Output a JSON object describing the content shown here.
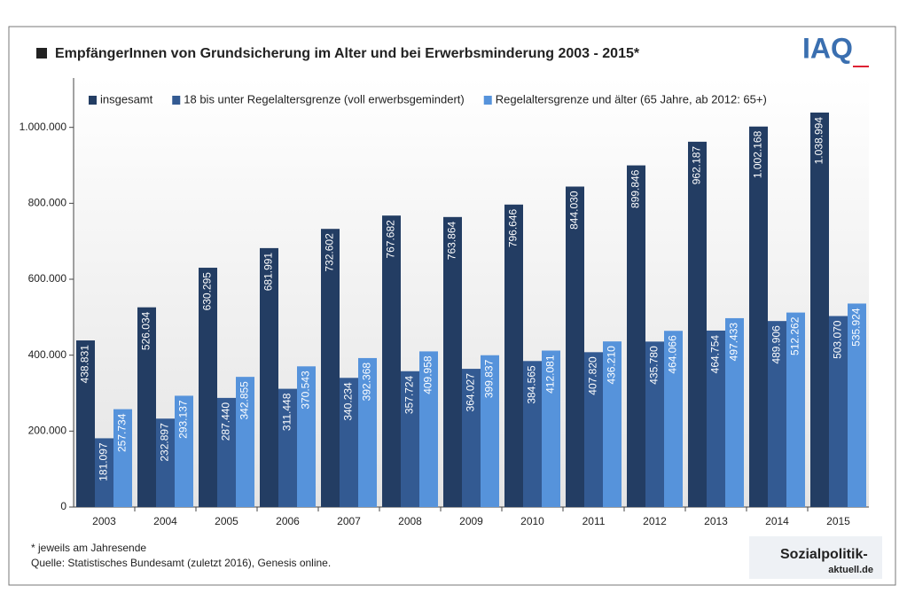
{
  "chart_data": {
    "type": "bar",
    "title": "EmpfängerInnen von Grundsicherung im Alter und bei Erwerbsminderung 2003 - 2015*",
    "categories": [
      "2003",
      "2004",
      "2005",
      "2006",
      "2007",
      "2008",
      "2009",
      "2010",
      "2011",
      "2012",
      "2013",
      "2014",
      "2015"
    ],
    "series": [
      {
        "name": "insgesamt",
        "color": "#233d63",
        "values": [
          438831,
          526034,
          630295,
          681991,
          732602,
          767682,
          763864,
          796646,
          844030,
          899846,
          962187,
          1002168,
          1038994
        ],
        "value_labels": [
          "438.831",
          "526.034",
          "630.295",
          "681.991",
          "732.602",
          "767.682",
          "763.864",
          "796.646",
          "844.030",
          "899.846",
          "962.187",
          "1.002.168",
          "1.038.994"
        ]
      },
      {
        "name": "18 bis unter Regelaltersgrenze (voll erwerbsgemindert)",
        "color": "#335a92",
        "values": [
          181097,
          232897,
          287440,
          311448,
          340234,
          357724,
          364027,
          384565,
          407820,
          435780,
          464754,
          489906,
          503070
        ],
        "value_labels": [
          "181.097",
          "232.897",
          "287.440",
          "311.448",
          "340.234",
          "357.724",
          "364.027",
          "384.565",
          "407.820",
          "435.780",
          "464.754",
          "489.906",
          "503.070"
        ]
      },
      {
        "name": "Regelaltersgrenze und älter (65 Jahre, ab 2012: 65+)",
        "color": "#5693db",
        "values": [
          257734,
          293137,
          342855,
          370543,
          392368,
          409958,
          399837,
          412081,
          436210,
          464066,
          497433,
          512262,
          535924
        ],
        "value_labels": [
          "257.734",
          "293.137",
          "342.855",
          "370.543",
          "392.368",
          "409.958",
          "399.837",
          "412.081",
          "436.210",
          "464.066",
          "497.433",
          "512.262",
          "535.924"
        ]
      }
    ],
    "ylim": [
      0,
      1130000
    ],
    "yticks": [
      0,
      {
        "value": 200000,
        "label": "200.000"
      },
      {
        "value": 400000,
        "label": "400.000"
      },
      {
        "value": 600000,
        "label": "600.000"
      },
      {
        "value": 800000,
        "label": "800.000"
      },
      {
        "value": 1000000,
        "label": "1.000.000"
      }
    ],
    "legend": "top",
    "notes": [
      "* jeweils am Jahresende",
      "Quelle: Statistisches Bundesamt (zuletzt 2016), Genesis online."
    ],
    "logos": [
      "IAQ",
      "Sozialpolitik-",
      "aktuell.de"
    ]
  }
}
